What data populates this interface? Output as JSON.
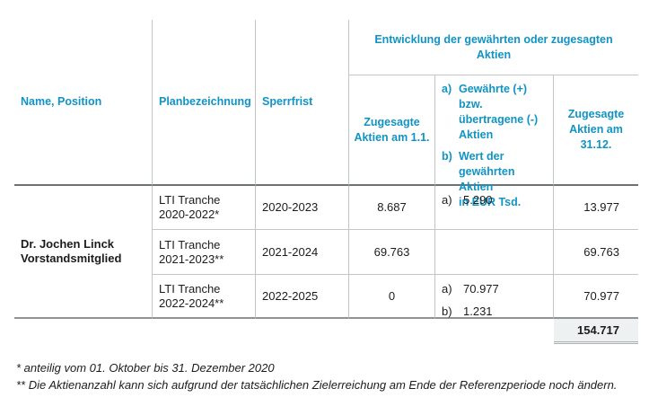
{
  "header": {
    "name": "Name, Position",
    "plan": "Planbezeichnung",
    "sperrfrist": "Sperrfrist",
    "group": "Entwicklung der gewährten oder zugesagten\nAktien",
    "start": "Zugesagte Aktien am 1.1.",
    "change_a_label": "a)",
    "change_a": "Gewährte (+)\nbzw.\nübertragene (-)\nAktien",
    "change_b_label": "b)",
    "change_b": "Wert der\ngewährten Aktien\nin EUR Tsd.",
    "end": "Zugesagte Aktien am 31.12."
  },
  "person": {
    "name": "Dr. Jochen Linck",
    "role": "Vorstandsmitglied"
  },
  "rows": [
    {
      "plan": "LTI Tranche 2020-2022*",
      "sperrfrist": "2020-2023",
      "start": "8.687",
      "a_label": "a)",
      "a_value": "5.290",
      "end": "13.977"
    },
    {
      "plan": "LTI Tranche 2021-2023**",
      "sperrfrist": "2021-2024",
      "start": "69.763",
      "end": "69.763"
    },
    {
      "plan": "LTI Tranche 2022-2024**",
      "sperrfrist": "2022-2025",
      "start": "0",
      "a_label": "a)",
      "a_value": "70.977",
      "b_label": "b)",
      "b_value": "1.231",
      "end": "70.977"
    }
  ],
  "total": "154.717",
  "footnotes": [
    "* anteilig vom 01. Oktober bis 31. Dezember 2020",
    "** Die Aktienanzahl kann sich aufgrund der tatsächlichen Zielerreichung am Ende der Referenzperiode noch ändern."
  ],
  "colors": {
    "accent": "#1193c4",
    "total_background": "#eef1f1",
    "border_light": "#c3c6c8",
    "border_dark": "#6f7274"
  }
}
